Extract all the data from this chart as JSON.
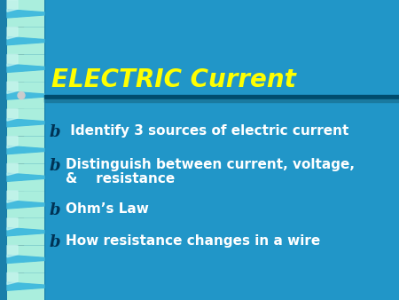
{
  "title": "ELECTRIC Current",
  "title_color": "#FFFF00",
  "title_fontsize": 20,
  "bg_color": "#2196C8",
  "text_color": "#FFFFFF",
  "bullet_fontsize": 11,
  "bullets": [
    " Identify 3 sources of electric current",
    "Distinguish between current, voltage,\n&    resistance",
    "Ohm’s Law",
    "How resistance changes in a wire"
  ],
  "divider_dark": "#004C6E",
  "divider_mid": "#1A7AA0",
  "spine_light": "#AAEEDD",
  "spine_mid": "#44BBDD",
  "spine_dark": "#003D5C",
  "spine_bg": "#1A7FAA"
}
